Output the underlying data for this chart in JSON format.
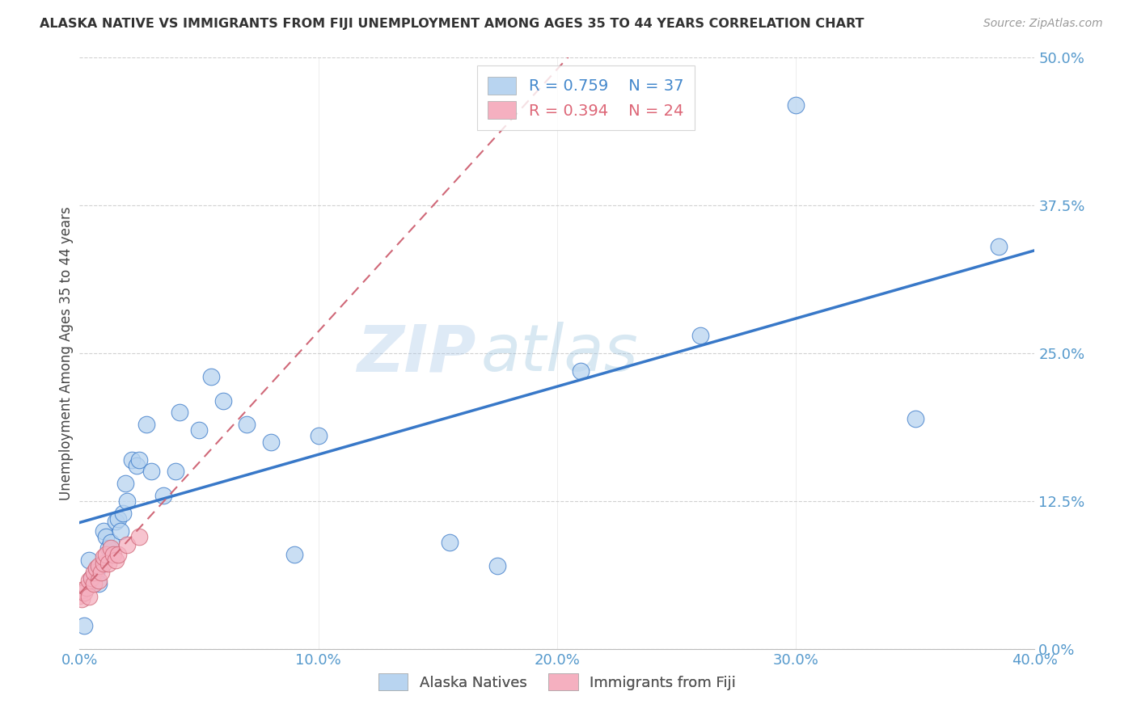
{
  "title": "ALASKA NATIVE VS IMMIGRANTS FROM FIJI UNEMPLOYMENT AMONG AGES 35 TO 44 YEARS CORRELATION CHART",
  "source": "Source: ZipAtlas.com",
  "ylabel": "Unemployment Among Ages 35 to 44 years",
  "xlim": [
    0.0,
    0.4
  ],
  "ylim": [
    0.0,
    0.5
  ],
  "legend1_label": "Alaska Natives",
  "legend2_label": "Immigrants from Fiji",
  "R1": "0.759",
  "N1": "37",
  "R2": "0.394",
  "N2": "24",
  "color_blue": "#b8d4f0",
  "color_pink": "#f5b0c0",
  "line_blue": "#3878c8",
  "line_pink": "#d06878",
  "watermark_zip": "ZIP",
  "watermark_atlas": "atlas",
  "alaska_x": [
    0.002,
    0.004,
    0.005,
    0.007,
    0.008,
    0.01,
    0.011,
    0.012,
    0.013,
    0.015,
    0.016,
    0.017,
    0.018,
    0.019,
    0.02,
    0.022,
    0.024,
    0.025,
    0.028,
    0.03,
    0.035,
    0.04,
    0.042,
    0.05,
    0.055,
    0.06,
    0.07,
    0.08,
    0.09,
    0.1,
    0.155,
    0.175,
    0.21,
    0.26,
    0.3,
    0.35,
    0.385
  ],
  "alaska_y": [
    0.02,
    0.075,
    0.06,
    0.065,
    0.055,
    0.1,
    0.095,
    0.085,
    0.09,
    0.108,
    0.11,
    0.1,
    0.115,
    0.14,
    0.125,
    0.16,
    0.155,
    0.16,
    0.19,
    0.15,
    0.13,
    0.15,
    0.2,
    0.185,
    0.23,
    0.21,
    0.19,
    0.175,
    0.08,
    0.18,
    0.09,
    0.07,
    0.235,
    0.265,
    0.46,
    0.195,
    0.34
  ],
  "fiji_x": [
    0.0,
    0.001,
    0.001,
    0.002,
    0.003,
    0.004,
    0.004,
    0.005,
    0.006,
    0.006,
    0.007,
    0.008,
    0.008,
    0.009,
    0.01,
    0.01,
    0.011,
    0.012,
    0.013,
    0.014,
    0.015,
    0.016,
    0.02,
    0.025
  ],
  "fiji_y": [
    0.045,
    0.042,
    0.05,
    0.048,
    0.052,
    0.044,
    0.058,
    0.06,
    0.055,
    0.065,
    0.068,
    0.058,
    0.07,
    0.065,
    0.072,
    0.078,
    0.08,
    0.072,
    0.085,
    0.08,
    0.075,
    0.08,
    0.088,
    0.095
  ],
  "x_ticks": [
    0.0,
    0.1,
    0.2,
    0.3,
    0.4
  ],
  "y_ticks": [
    0.0,
    0.125,
    0.25,
    0.375,
    0.5
  ],
  "x_tick_labels": [
    "0.0%",
    "10.0%",
    "20.0%",
    "30.0%",
    "40.0%"
  ],
  "y_tick_labels": [
    "0.0%",
    "12.5%",
    "25.0%",
    "37.5%",
    "50.0%"
  ],
  "tick_color": "#5599cc",
  "grid_color": "#cccccc",
  "spine_color": "#bbbbbb",
  "ylabel_color": "#444444",
  "title_color": "#333333",
  "source_color": "#999999",
  "legend_edge_color": "#cccccc",
  "legend_text_blue": "#4488cc",
  "legend_text_pink": "#dd6677"
}
